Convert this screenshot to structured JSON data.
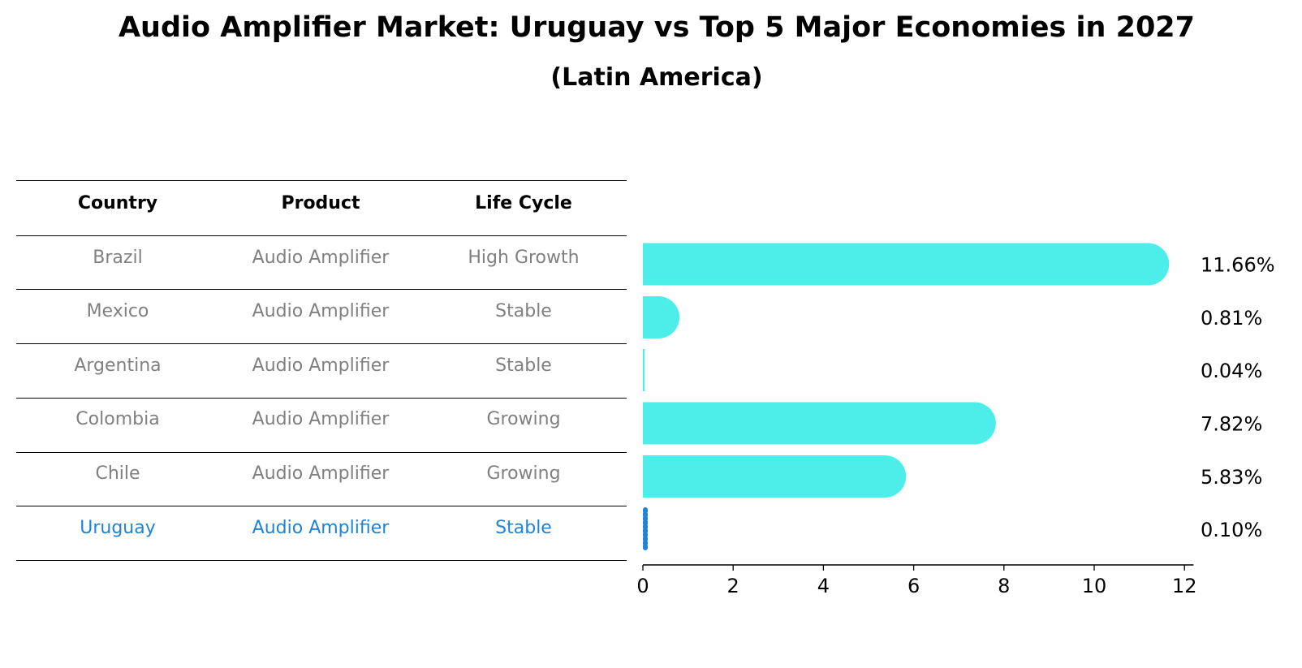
{
  "title": "Audio Amplifier Market: Uruguay vs Top 5 Major Economies in 2027",
  "subtitle": "(Latin America)",
  "table": {
    "headers": [
      "Country",
      "Product",
      "Life Cycle"
    ],
    "rows": [
      {
        "country": "Brazil",
        "product": "Audio Amplifier",
        "life_cycle": "High Growth",
        "highlight": false
      },
      {
        "country": "Mexico",
        "product": "Audio Amplifier",
        "life_cycle": "Stable",
        "highlight": false
      },
      {
        "country": "Argentina",
        "product": "Audio Amplifier",
        "life_cycle": "Stable",
        "highlight": false
      },
      {
        "country": "Colombia",
        "product": "Audio Amplifier",
        "life_cycle": "Growing",
        "highlight": false
      },
      {
        "country": "Chile",
        "product": "Audio Amplifier",
        "life_cycle": "Growing",
        "highlight": false
      },
      {
        "country": "Uruguay",
        "product": "Audio Amplifier",
        "life_cycle": "Stable",
        "highlight": true
      }
    ]
  },
  "colors": {
    "bar": "#4deeea",
    "highlight": "#1f83d6",
    "body_text": "#808080"
  },
  "chart_data": {
    "type": "bar",
    "orientation": "horizontal",
    "categories": [
      "Brazil",
      "Mexico",
      "Argentina",
      "Colombia",
      "Chile",
      "Uruguay"
    ],
    "values": [
      11.66,
      0.81,
      0.04,
      7.82,
      5.83,
      0.1
    ],
    "value_labels": [
      "11.66%",
      "0.81%",
      "0.04%",
      "7.82%",
      "5.83%",
      "0.10%"
    ],
    "xlim": [
      0,
      12.2
    ],
    "xticks": [
      0,
      2,
      4,
      6,
      8,
      10,
      12
    ],
    "highlight_index": 5,
    "grid": false,
    "legend": false
  }
}
